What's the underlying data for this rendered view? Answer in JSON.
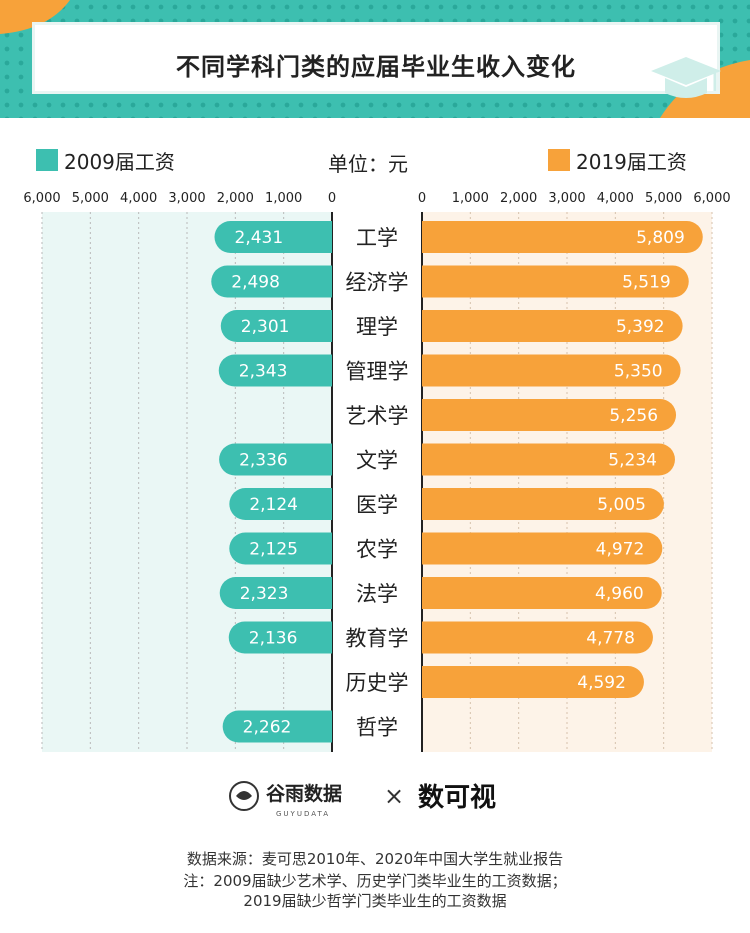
{
  "title": "不同学科门类的应届毕业生收入变化",
  "legend": {
    "left": "2009届工资",
    "right": "2019届工资",
    "unit": "单位：元",
    "left_color": "#3dbfb0",
    "right_color": "#f7a23a"
  },
  "chart_data": {
    "type": "bar",
    "orientation": "horizontal-butterfly",
    "categories": [
      "工学",
      "经济学",
      "理学",
      "管理学",
      "艺术学",
      "文学",
      "医学",
      "农学",
      "法学",
      "教育学",
      "历史学",
      "哲学"
    ],
    "series": [
      {
        "name": "2009届工资",
        "values": [
          2431,
          2498,
          2301,
          2343,
          null,
          2336,
          2124,
          2125,
          2323,
          2136,
          null,
          2262
        ]
      },
      {
        "name": "2019届工资",
        "values": [
          5809,
          5519,
          5392,
          5350,
          5256,
          5234,
          5005,
          4972,
          4960,
          4778,
          4592,
          null
        ]
      }
    ],
    "value_labels_2009": [
      "2,431",
      "2,498",
      "2,301",
      "2,343",
      "",
      "2,336",
      "2,124",
      "2,125",
      "2,323",
      "2,136",
      "",
      "2,262"
    ],
    "value_labels_2019": [
      "5,809",
      "5,519",
      "5,392",
      "5,350",
      "5,256",
      "5,234",
      "5,005",
      "4,972",
      "4,960",
      "4,778",
      "4,592",
      ""
    ],
    "left_ticks": [
      "6,000",
      "5,000",
      "4,000",
      "3,000",
      "2,000",
      "1,000",
      "0"
    ],
    "right_ticks": [
      "0",
      "1,000",
      "2,000",
      "3,000",
      "4,000",
      "5,000",
      "6,000"
    ],
    "xlim": [
      0,
      6000
    ],
    "grid": true
  },
  "logos": {
    "brand1_name": "谷雨数据",
    "brand1_sub": "GUYUDATA",
    "times": "×",
    "brand2_name": "数可视"
  },
  "source": {
    "line1": "数据来源：麦可思2010年、2020年中国大学生就业报告",
    "line2": "注：2009届缺少艺术学、历史学门类毕业生的工资数据；",
    "line3": "2019届缺少哲学门类毕业生的工资数据"
  }
}
